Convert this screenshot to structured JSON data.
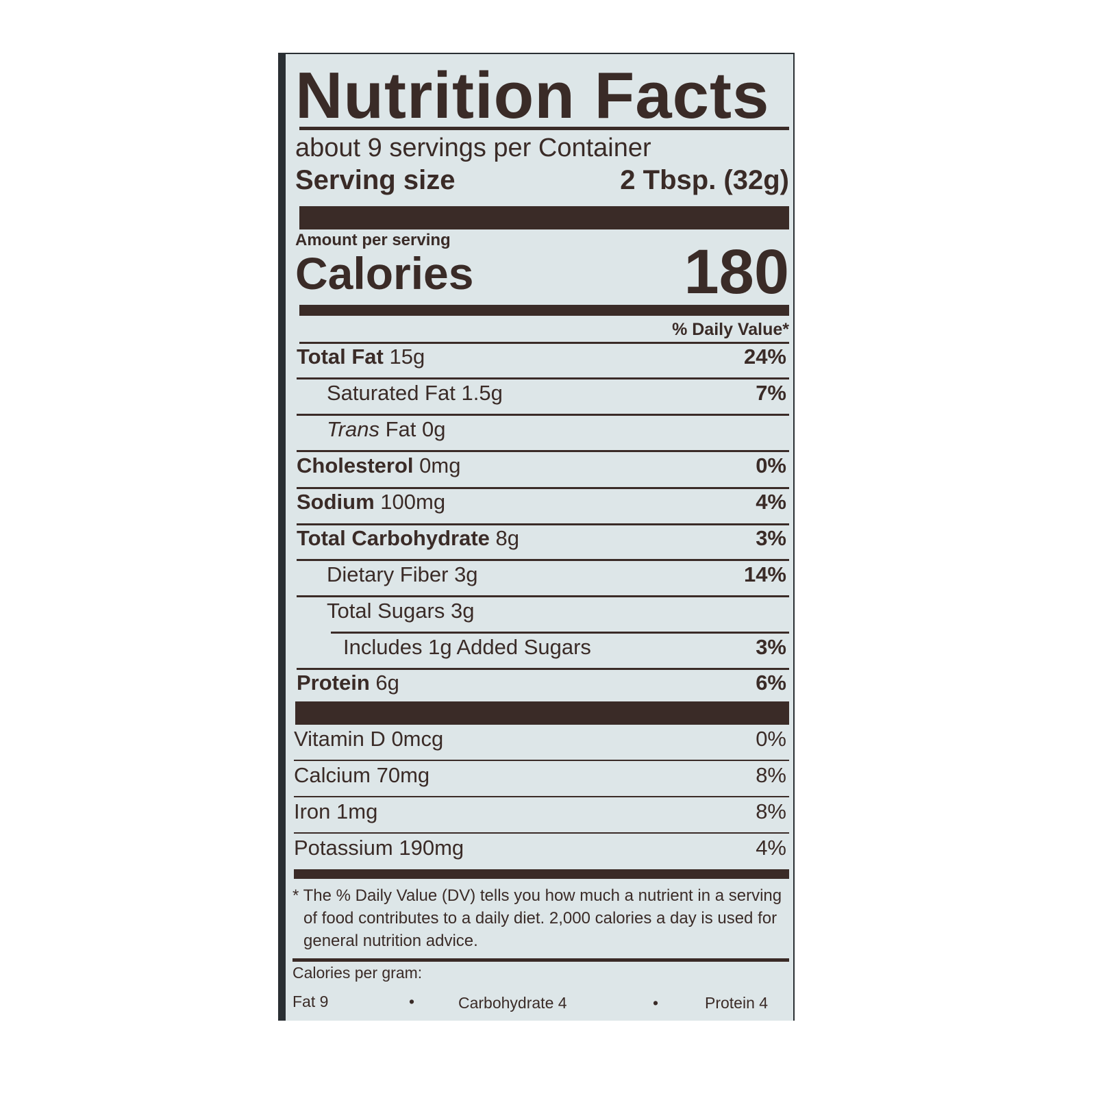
{
  "title": "Nutrition Facts",
  "servings_per_container": "about 9 servings per Container",
  "serving_size": {
    "label": "Serving size",
    "value": "2 Tbsp. (32g)"
  },
  "amount_per_serving": "Amount per serving",
  "calories": {
    "label": "Calories",
    "value": "180"
  },
  "daily_value_header": "% Daily Value*",
  "nutrients": [
    {
      "name": "Total Fat",
      "amount": "15g",
      "dv": "24%"
    },
    {
      "name": "Saturated Fat",
      "amount": "1.5g",
      "dv": "7%"
    },
    {
      "name": "Trans",
      "name_rest": "Fat",
      "amount": "0g",
      "dv": ""
    },
    {
      "name": "Cholesterol",
      "amount": "0mg",
      "dv": "0%"
    },
    {
      "name": "Sodium",
      "amount": "100mg",
      "dv": "4%"
    },
    {
      "name": "Total Carbohydrate",
      "amount": "8g",
      "dv": "3%"
    },
    {
      "name": "Dietary Fiber",
      "amount": "3g",
      "dv": "14%"
    },
    {
      "name": "Total Sugars",
      "amount": "3g",
      "dv": ""
    },
    {
      "name": "Includes 1g Added Sugars",
      "amount": "",
      "dv": "3%"
    },
    {
      "name": "Protein",
      "amount": "6g",
      "dv": "6%"
    }
  ],
  "vitamins": [
    {
      "name": "Vitamin D",
      "amount": "0mcg",
      "dv": "0%"
    },
    {
      "name": "Calcium",
      "amount": "70mg",
      "dv": "8%"
    },
    {
      "name": "Iron",
      "amount": "1mg",
      "dv": "8%"
    },
    {
      "name": "Potassium",
      "amount": "190mg",
      "dv": "4%"
    }
  ],
  "footnote": "* The % Daily Value (DV) tells you how much a nutrient in a serving of food contributes to a daily diet. 2,000 calories a day is used for general nutrition advice.",
  "calories_per_gram": {
    "label": "Calories per gram:",
    "fat": "Fat 9",
    "carbohydrate": "Carbohydrate 4",
    "protein": "Protein 4",
    "separator": "•"
  },
  "colors": {
    "background": "#dde6e8",
    "ink": "#3a2b27",
    "edge": "#2a2f33"
  }
}
